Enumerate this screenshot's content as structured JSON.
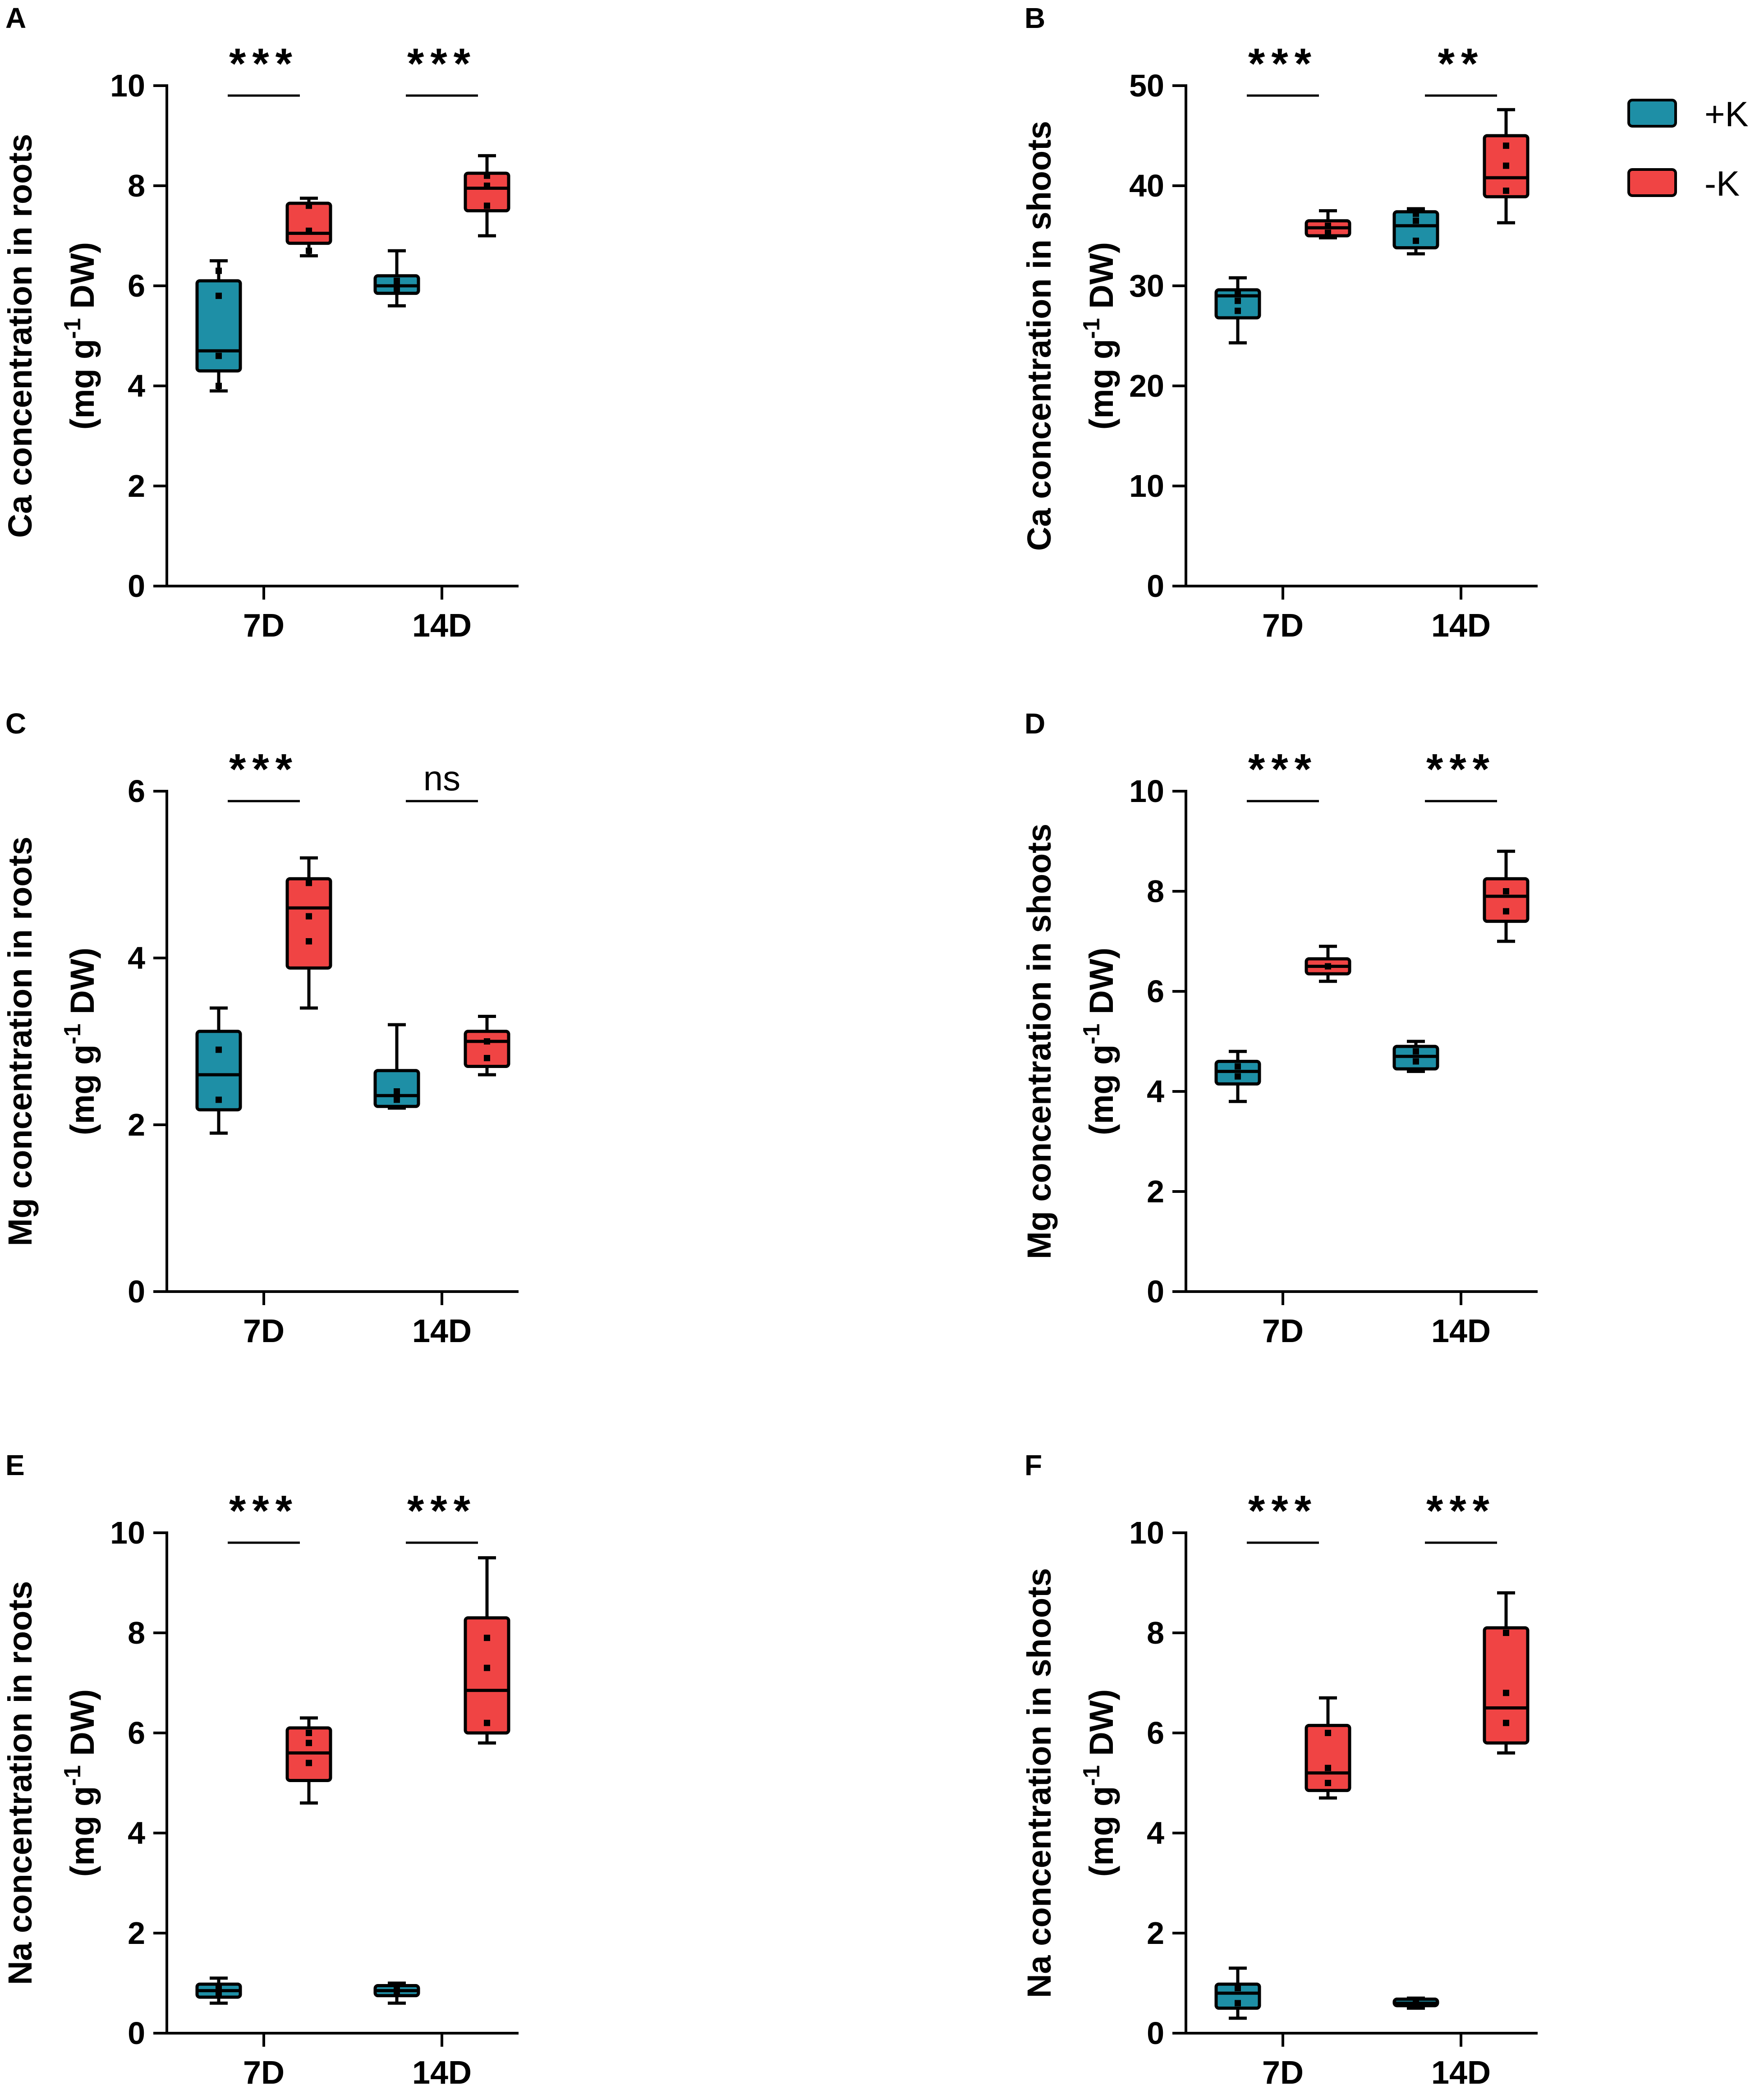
{
  "colors": {
    "plusK": "#1e8fa6",
    "minusK": "#f04444",
    "axis": "#000000"
  },
  "legend": {
    "items": [
      {
        "label": "+K",
        "color": "#1e8fa6"
      },
      {
        "label": "-K",
        "color": "#f04444"
      }
    ],
    "position": "top-right"
  },
  "chart_data": [
    {
      "panel": "A",
      "type": "box",
      "ylabel_line1": "Ca concentration in roots",
      "ylabel_line2": "(mg g",
      "ylabel_sup": "-1",
      "ylabel_tail": " DW)",
      "ylim": [
        0,
        10
      ],
      "yticks": [
        0,
        2,
        4,
        6,
        8,
        10
      ],
      "categories": [
        "7D",
        "14D"
      ],
      "series": [
        {
          "name": "+K",
          "boxes": [
            {
              "min": 3.9,
              "q1": 4.3,
              "median": 4.7,
              "q3": 6.1,
              "max": 6.5,
              "points": [
                4.0,
                4.6,
                5.8,
                6.3
              ]
            },
            {
              "min": 5.6,
              "q1": 5.85,
              "median": 6.0,
              "q3": 6.2,
              "max": 6.7,
              "points": [
                5.9,
                6.0,
                6.1
              ]
            }
          ]
        },
        {
          "name": "-K",
          "boxes": [
            {
              "min": 6.6,
              "q1": 6.85,
              "median": 7.05,
              "q3": 7.65,
              "max": 7.75,
              "points": [
                6.7,
                7.1,
                7.6
              ]
            },
            {
              "min": 7.0,
              "q1": 7.5,
              "median": 7.95,
              "q3": 8.25,
              "max": 8.6,
              "points": [
                7.6,
                8.0,
                8.2
              ]
            }
          ]
        }
      ],
      "significance": [
        "***",
        "***"
      ]
    },
    {
      "panel": "B",
      "type": "box",
      "ylabel_line1": "Ca concentration in shoots",
      "ylabel_line2": "(mg g",
      "ylabel_sup": "-1",
      "ylabel_tail": " DW)",
      "ylim": [
        0,
        50
      ],
      "yticks": [
        0,
        10,
        20,
        30,
        40,
        50
      ],
      "categories": [
        "7D",
        "14D"
      ],
      "series": [
        {
          "name": "+K",
          "boxes": [
            {
              "min": 24.3,
              "q1": 26.8,
              "median": 29.0,
              "q3": 29.6,
              "max": 30.8,
              "points": [
                27.5,
                28.5,
                29.2
              ]
            },
            {
              "min": 33.2,
              "q1": 33.8,
              "median": 36.0,
              "q3": 37.4,
              "max": 37.7,
              "points": [
                34.5,
                36.5,
                37.2
              ]
            }
          ]
        },
        {
          "name": "-K",
          "boxes": [
            {
              "min": 34.8,
              "q1": 35.0,
              "median": 35.8,
              "q3": 36.5,
              "max": 37.5,
              "points": [
                35.3,
                36.0
              ]
            },
            {
              "min": 36.3,
              "q1": 38.9,
              "median": 40.8,
              "q3": 45.0,
              "max": 47.6,
              "points": [
                39.5,
                42.0,
                44.0
              ]
            }
          ]
        }
      ],
      "significance": [
        "***",
        "**"
      ]
    },
    {
      "panel": "C",
      "type": "box",
      "ylabel_line1": "Mg concentration in roots",
      "ylabel_line2": "(mg g",
      "ylabel_sup": "-1",
      "ylabel_tail": " DW)",
      "ylim": [
        0,
        6
      ],
      "yticks": [
        0,
        2,
        4,
        6
      ],
      "categories": [
        "7D",
        "14D"
      ],
      "series": [
        {
          "name": "+K",
          "boxes": [
            {
              "min": 1.9,
              "q1": 2.18,
              "median": 2.6,
              "q3": 3.12,
              "max": 3.4,
              "points": [
                2.3,
                2.9
              ]
            },
            {
              "min": 2.2,
              "q1": 2.22,
              "median": 2.35,
              "q3": 2.65,
              "max": 3.2,
              "points": [
                2.3,
                2.4
              ]
            }
          ]
        },
        {
          "name": "-K",
          "boxes": [
            {
              "min": 3.4,
              "q1": 3.88,
              "median": 4.6,
              "q3": 4.95,
              "max": 5.2,
              "points": [
                4.2,
                4.5,
                4.9
              ]
            },
            {
              "min": 2.6,
              "q1": 2.7,
              "median": 3.0,
              "q3": 3.12,
              "max": 3.3,
              "points": [
                2.8,
                3.0
              ]
            }
          ]
        }
      ],
      "significance": [
        "***",
        "ns"
      ]
    },
    {
      "panel": "D",
      "type": "box",
      "ylabel_line1": "Mg concentration in shoots",
      "ylabel_line2": "(mg g",
      "ylabel_sup": "-1",
      "ylabel_tail": " DW)",
      "ylim": [
        0,
        10
      ],
      "yticks": [
        0,
        2,
        4,
        6,
        8,
        10
      ],
      "categories": [
        "7D",
        "14D"
      ],
      "series": [
        {
          "name": "+K",
          "boxes": [
            {
              "min": 3.8,
              "q1": 4.15,
              "median": 4.4,
              "q3": 4.6,
              "max": 4.8,
              "points": [
                4.3,
                4.5
              ]
            },
            {
              "min": 4.4,
              "q1": 4.45,
              "median": 4.7,
              "q3": 4.9,
              "max": 5.0,
              "points": [
                4.6,
                4.8
              ]
            }
          ]
        },
        {
          "name": "-K",
          "boxes": [
            {
              "min": 6.2,
              "q1": 6.35,
              "median": 6.5,
              "q3": 6.65,
              "max": 6.9,
              "points": [
                6.5
              ]
            },
            {
              "min": 7.0,
              "q1": 7.4,
              "median": 7.9,
              "q3": 8.25,
              "max": 8.8,
              "points": [
                7.6,
                8.0
              ]
            }
          ]
        }
      ],
      "significance": [
        "***",
        "***"
      ]
    },
    {
      "panel": "E",
      "type": "box",
      "ylabel_line1": "Na concentration in roots",
      "ylabel_line2": "(mg g",
      "ylabel_sup": "-1",
      "ylabel_tail": " DW)",
      "ylim": [
        0,
        10
      ],
      "yticks": [
        0,
        2,
        4,
        6,
        8,
        10
      ],
      "categories": [
        "7D",
        "14D"
      ],
      "series": [
        {
          "name": "+K",
          "boxes": [
            {
              "min": 0.6,
              "q1": 0.72,
              "median": 0.85,
              "q3": 0.98,
              "max": 1.1,
              "points": [
                0.8,
                0.9
              ]
            },
            {
              "min": 0.6,
              "q1": 0.75,
              "median": 0.85,
              "q3": 0.95,
              "max": 1.0,
              "points": [
                0.8,
                0.9
              ]
            }
          ]
        },
        {
          "name": "-K",
          "boxes": [
            {
              "min": 4.6,
              "q1": 5.05,
              "median": 5.6,
              "q3": 6.1,
              "max": 6.3,
              "points": [
                5.4,
                5.8,
                6.0
              ]
            },
            {
              "min": 5.8,
              "q1": 6.0,
              "median": 6.85,
              "q3": 8.3,
              "max": 9.5,
              "points": [
                6.2,
                7.3,
                7.9
              ]
            }
          ]
        }
      ],
      "significance": [
        "***",
        "***"
      ]
    },
    {
      "panel": "F",
      "type": "box",
      "ylabel_line1": "Na concentration in shoots",
      "ylabel_line2": "(mg g",
      "ylabel_sup": "-1",
      "ylabel_tail": " DW)",
      "ylim": [
        0,
        10
      ],
      "yticks": [
        0,
        2,
        4,
        6,
        8,
        10
      ],
      "categories": [
        "7D",
        "14D"
      ],
      "series": [
        {
          "name": "+K",
          "boxes": [
            {
              "min": 0.3,
              "q1": 0.5,
              "median": 0.8,
              "q3": 0.98,
              "max": 1.3,
              "points": [
                0.6,
                0.9
              ]
            },
            {
              "min": 0.5,
              "q1": 0.55,
              "median": 0.6,
              "q3": 0.68,
              "max": 0.7,
              "points": [
                0.6
              ]
            }
          ]
        },
        {
          "name": "-K",
          "boxes": [
            {
              "min": 4.7,
              "q1": 4.85,
              "median": 5.2,
              "q3": 6.15,
              "max": 6.7,
              "points": [
                5.0,
                5.3,
                6.0
              ]
            },
            {
              "min": 5.6,
              "q1": 5.8,
              "median": 6.5,
              "q3": 8.1,
              "max": 8.8,
              "points": [
                6.2,
                6.8,
                8.0
              ]
            }
          ]
        }
      ],
      "significance": [
        "***",
        "***"
      ]
    }
  ]
}
